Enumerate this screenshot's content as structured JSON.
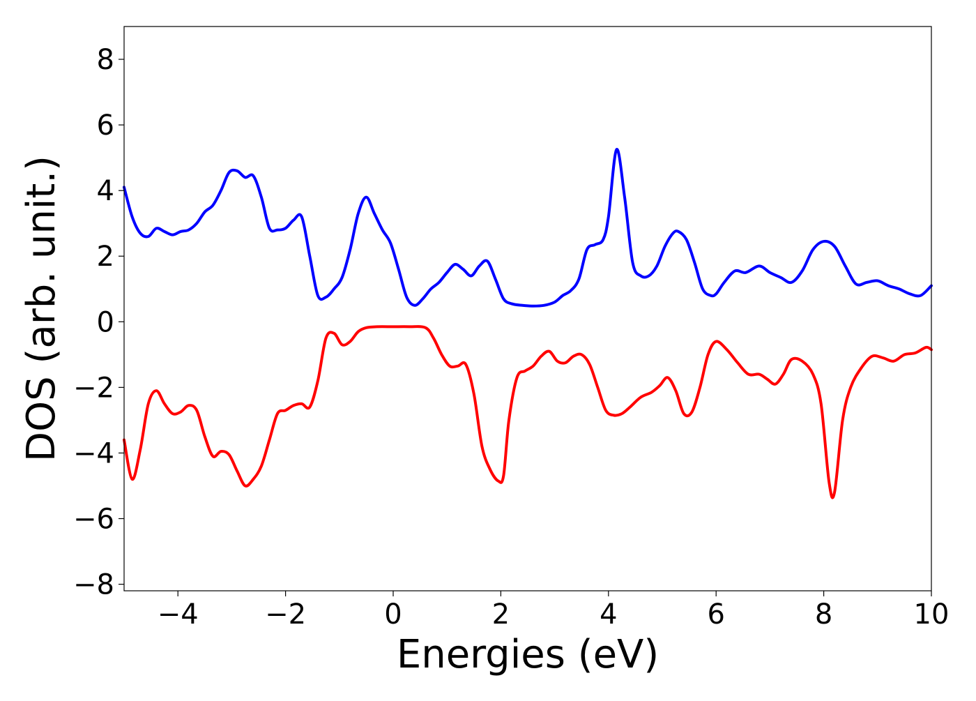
{
  "chart_data": {
    "type": "line",
    "xlabel": "Energies (eV)",
    "ylabel": "DOS (arb. unit.)",
    "xlim": [
      -5,
      10
    ],
    "ylim": [
      -8.2,
      9.0
    ],
    "xticks": [
      {
        "value": -4,
        "label": "−4"
      },
      {
        "value": -2,
        "label": "−2"
      },
      {
        "value": 0,
        "label": "0"
      },
      {
        "value": 2,
        "label": "2"
      },
      {
        "value": 4,
        "label": "4"
      },
      {
        "value": 6,
        "label": "6"
      },
      {
        "value": 8,
        "label": "8"
      },
      {
        "value": 10,
        "label": "10"
      }
    ],
    "yticks": [
      {
        "value": 8,
        "label": "8"
      },
      {
        "value": 6,
        "label": "6"
      },
      {
        "value": 4,
        "label": "4"
      },
      {
        "value": 2,
        "label": "2"
      },
      {
        "value": 0,
        "label": "0"
      },
      {
        "value": -2,
        "label": "−2"
      },
      {
        "value": -4,
        "label": "−4"
      },
      {
        "value": -6,
        "label": "−6"
      },
      {
        "value": -8,
        "label": "−8"
      }
    ],
    "grid": false,
    "legend": "none",
    "series": [
      {
        "color": "#0000ff",
        "x": [
          -5.0,
          -4.85,
          -4.7,
          -4.55,
          -4.4,
          -4.25,
          -4.1,
          -3.95,
          -3.8,
          -3.65,
          -3.5,
          -3.35,
          -3.2,
          -3.05,
          -2.9,
          -2.75,
          -2.6,
          -2.45,
          -2.3,
          -2.15,
          -2.0,
          -1.85,
          -1.7,
          -1.55,
          -1.4,
          -1.25,
          -1.1,
          -0.95,
          -0.8,
          -0.65,
          -0.5,
          -0.35,
          -0.2,
          -0.05,
          0.1,
          0.25,
          0.4,
          0.55,
          0.7,
          0.85,
          1.0,
          1.15,
          1.3,
          1.45,
          1.6,
          1.75,
          1.9,
          2.05,
          2.2,
          2.4,
          2.6,
          2.8,
          3.0,
          3.15,
          3.3,
          3.45,
          3.6,
          3.75,
          3.9,
          4.0,
          4.15,
          4.3,
          4.45,
          4.6,
          4.75,
          4.9,
          5.05,
          5.2,
          5.3,
          5.45,
          5.6,
          5.75,
          5.9,
          6.0,
          6.15,
          6.35,
          6.55,
          6.8,
          7.0,
          7.2,
          7.4,
          7.6,
          7.8,
          8.0,
          8.2,
          8.4,
          8.6,
          8.8,
          9.0,
          9.2,
          9.4,
          9.6,
          9.8,
          10.0
        ],
        "y": [
          4.1,
          3.2,
          2.7,
          2.6,
          2.85,
          2.75,
          2.65,
          2.75,
          2.8,
          3.0,
          3.35,
          3.55,
          4.0,
          4.55,
          4.6,
          4.4,
          4.45,
          3.8,
          2.85,
          2.8,
          2.85,
          3.1,
          3.2,
          2.0,
          0.8,
          0.75,
          1.0,
          1.35,
          2.2,
          3.3,
          3.8,
          3.3,
          2.8,
          2.4,
          1.6,
          0.75,
          0.5,
          0.7,
          1.0,
          1.2,
          1.5,
          1.75,
          1.6,
          1.4,
          1.7,
          1.85,
          1.3,
          0.7,
          0.55,
          0.5,
          0.48,
          0.5,
          0.6,
          0.8,
          0.95,
          1.3,
          2.2,
          2.35,
          2.5,
          3.2,
          5.25,
          3.8,
          1.8,
          1.4,
          1.4,
          1.7,
          2.3,
          2.7,
          2.75,
          2.5,
          1.8,
          1.0,
          0.8,
          0.85,
          1.2,
          1.55,
          1.5,
          1.7,
          1.5,
          1.35,
          1.2,
          1.55,
          2.2,
          2.45,
          2.3,
          1.7,
          1.15,
          1.2,
          1.25,
          1.1,
          1.0,
          0.85,
          0.8,
          1.1
        ]
      },
      {
        "color": "#ff0000",
        "x": [
          -5.0,
          -4.85,
          -4.7,
          -4.55,
          -4.4,
          -4.25,
          -4.1,
          -3.95,
          -3.8,
          -3.65,
          -3.5,
          -3.35,
          -3.2,
          -3.05,
          -2.9,
          -2.75,
          -2.6,
          -2.45,
          -2.3,
          -2.15,
          -2.0,
          -1.85,
          -1.7,
          -1.55,
          -1.4,
          -1.25,
          -1.1,
          -0.95,
          -0.8,
          -0.65,
          -0.5,
          -0.3,
          0.0,
          0.3,
          0.6,
          0.75,
          0.9,
          1.05,
          1.2,
          1.35,
          1.5,
          1.65,
          1.8,
          1.95,
          2.05,
          2.15,
          2.3,
          2.45,
          2.6,
          2.75,
          2.9,
          3.05,
          3.2,
          3.35,
          3.5,
          3.65,
          3.8,
          3.95,
          4.1,
          4.25,
          4.4,
          4.6,
          4.8,
          4.95,
          5.1,
          5.25,
          5.4,
          5.55,
          5.7,
          5.85,
          6.0,
          6.2,
          6.4,
          6.6,
          6.8,
          6.95,
          7.1,
          7.25,
          7.4,
          7.6,
          7.8,
          7.95,
          8.1,
          8.2,
          8.35,
          8.5,
          8.7,
          8.9,
          9.1,
          9.3,
          9.5,
          9.7,
          9.9,
          10.0
        ],
        "y": [
          -3.6,
          -4.8,
          -3.9,
          -2.5,
          -2.1,
          -2.5,
          -2.8,
          -2.75,
          -2.55,
          -2.7,
          -3.5,
          -4.1,
          -3.95,
          -4.05,
          -4.55,
          -5.0,
          -4.8,
          -4.4,
          -3.6,
          -2.8,
          -2.7,
          -2.55,
          -2.5,
          -2.6,
          -1.8,
          -0.5,
          -0.35,
          -0.7,
          -0.6,
          -0.3,
          -0.18,
          -0.15,
          -0.15,
          -0.15,
          -0.18,
          -0.5,
          -1.0,
          -1.35,
          -1.35,
          -1.3,
          -2.2,
          -3.8,
          -4.5,
          -4.85,
          -4.7,
          -3.0,
          -1.7,
          -1.5,
          -1.35,
          -1.05,
          -0.9,
          -1.2,
          -1.25,
          -1.05,
          -1.0,
          -1.3,
          -2.0,
          -2.7,
          -2.85,
          -2.8,
          -2.6,
          -2.3,
          -2.15,
          -1.95,
          -1.7,
          -2.1,
          -2.8,
          -2.75,
          -2.0,
          -1.0,
          -0.6,
          -0.85,
          -1.25,
          -1.6,
          -1.6,
          -1.75,
          -1.9,
          -1.6,
          -1.15,
          -1.2,
          -1.6,
          -2.5,
          -4.9,
          -5.2,
          -3.0,
          -2.0,
          -1.4,
          -1.05,
          -1.1,
          -1.2,
          -1.0,
          -0.95,
          -0.78,
          -0.85
        ]
      }
    ]
  }
}
